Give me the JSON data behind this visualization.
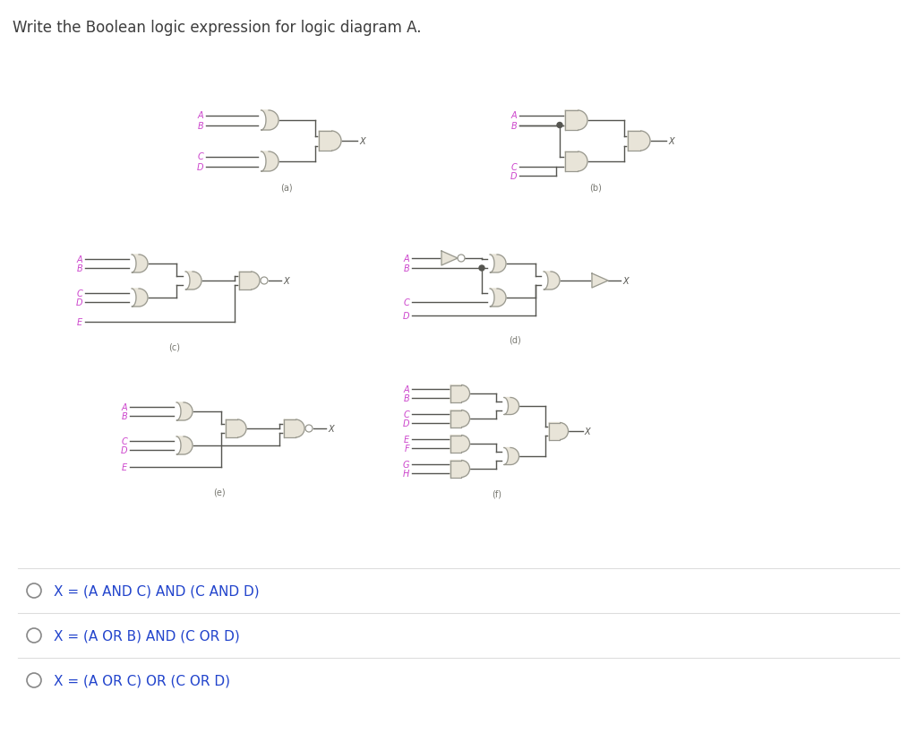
{
  "title": "Write the Boolean logic expression for logic diagram A.",
  "title_color": "#3d3d3d",
  "title_fontsize": 12,
  "label_color": "#cc44cc",
  "label_fontsize": 7,
  "gate_fill": "#e8e4d8",
  "gate_edge": "#999990",
  "line_color": "#555550",
  "wire_lw": 1.0,
  "sublabel_color": "#777770",
  "sublabel_fontsize": 7,
  "answer_color": "#2244cc",
  "answer_fontsize": 11,
  "options": [
    "X = (A AND C) AND (C AND D)",
    "X = (A OR B) AND (C OR D)",
    "X = (A OR C) OR (C OR D)"
  ],
  "divider_color": "#dddddd",
  "bg_color": "#ffffff"
}
